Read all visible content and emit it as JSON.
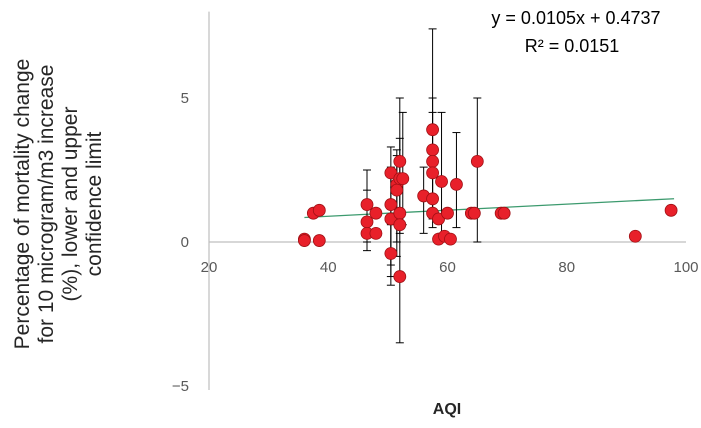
{
  "chart_data": {
    "type": "scatter",
    "xlabel": "AQI",
    "ylabel_lines": [
      "Percentage of mortality change",
      "for 10 microgram/m3 increase",
      "(%), lower and upper",
      "confidence limit"
    ],
    "xlim": [
      20,
      100
    ],
    "ylim": [
      -5,
      8
    ],
    "xticks": [
      {
        "value": 20,
        "label": "20"
      },
      {
        "value": 40,
        "label": "40"
      },
      {
        "value": 60,
        "label": "60"
      },
      {
        "value": 80,
        "label": "80"
      },
      {
        "value": 100,
        "label": "100"
      }
    ],
    "yticks": [
      {
        "value": 5,
        "label": "5"
      },
      {
        "value": 0,
        "label": "0"
      },
      {
        "value": -5,
        "label": "−5"
      }
    ],
    "trendline": {
      "equation": "y = 0.0105x + 0.4737",
      "r2_label": "R² = 0.0151",
      "slope": 0.0105,
      "intercept": 0.4737,
      "x_range": [
        36,
        98
      ],
      "color": "#3c9a6e"
    },
    "marker_color": "#e8202a",
    "marker_edge": "#a01015",
    "errorbar_color": "#000000",
    "axis_color": "#bfbfbf",
    "points": [
      {
        "x": 36,
        "y": 0.1
      },
      {
        "x": 36,
        "y": 0.05
      },
      {
        "x": 37.5,
        "y": 1.0
      },
      {
        "x": 38.5,
        "y": 1.1
      },
      {
        "x": 38.5,
        "y": 0.05
      },
      {
        "x": 46.5,
        "y": 1.3,
        "lo": 0.0,
        "hi": 2.5
      },
      {
        "x": 46.5,
        "y": 0.7,
        "lo": -0.3,
        "hi": 1.8
      },
      {
        "x": 46.5,
        "y": 0.3
      },
      {
        "x": 48,
        "y": 1.0
      },
      {
        "x": 48,
        "y": 0.3
      },
      {
        "x": 50.5,
        "y": 2.4,
        "lo": -1.2,
        "hi": 3.3
      },
      {
        "x": 50.5,
        "y": 1.3,
        "lo": -0.8,
        "hi": 2.6
      },
      {
        "x": 50.5,
        "y": 0.8
      },
      {
        "x": 50.5,
        "y": -0.4,
        "lo": -1.5,
        "hi": 0.6
      },
      {
        "x": 51.5,
        "y": 2.0,
        "lo": -0.5,
        "hi": 3.2
      },
      {
        "x": 51.5,
        "y": 1.8,
        "lo": 0.0,
        "hi": 3.0
      },
      {
        "x": 52.0,
        "y": 2.2,
        "lo": 0.3,
        "hi": 3.6
      },
      {
        "x": 52.0,
        "y": 2.8,
        "lo": 0.5,
        "hi": 5.0
      },
      {
        "x": 52.0,
        "y": 1.0
      },
      {
        "x": 52.0,
        "y": 0.6
      },
      {
        "x": 52.0,
        "y": -1.2,
        "lo": -3.5,
        "hi": 0.5
      },
      {
        "x": 52.5,
        "y": 2.2,
        "lo": 0.6,
        "hi": 4.5
      },
      {
        "x": 56,
        "y": 1.6,
        "lo": 0.3,
        "hi": 2.6
      },
      {
        "x": 57.5,
        "y": 3.9,
        "lo": 0.5,
        "hi": 7.4
      },
      {
        "x": 57.5,
        "y": 3.2,
        "lo": 0.8,
        "hi": 5.0
      },
      {
        "x": 57.5,
        "y": 2.8,
        "lo": 1.0,
        "hi": 4.5
      },
      {
        "x": 57.5,
        "y": 2.4
      },
      {
        "x": 57.5,
        "y": 1.5
      },
      {
        "x": 57.5,
        "y": 1.0
      },
      {
        "x": 58.5,
        "y": 0.8
      },
      {
        "x": 58.5,
        "y": 0.1
      },
      {
        "x": 59,
        "y": 2.1,
        "lo": 0.3,
        "hi": 4.5
      },
      {
        "x": 59.5,
        "y": 0.2
      },
      {
        "x": 60,
        "y": 1.0
      },
      {
        "x": 60.5,
        "y": 0.1
      },
      {
        "x": 61.5,
        "y": 2.0,
        "lo": 0.5,
        "hi": 3.8
      },
      {
        "x": 64,
        "y": 1.0
      },
      {
        "x": 64.5,
        "y": 1.0
      },
      {
        "x": 65,
        "y": 2.8,
        "lo": 0.0,
        "hi": 5.0
      },
      {
        "x": 69,
        "y": 1.0
      },
      {
        "x": 69.5,
        "y": 1.0
      },
      {
        "x": 91.5,
        "y": 0.2
      },
      {
        "x": 97.5,
        "y": 1.1
      }
    ]
  }
}
